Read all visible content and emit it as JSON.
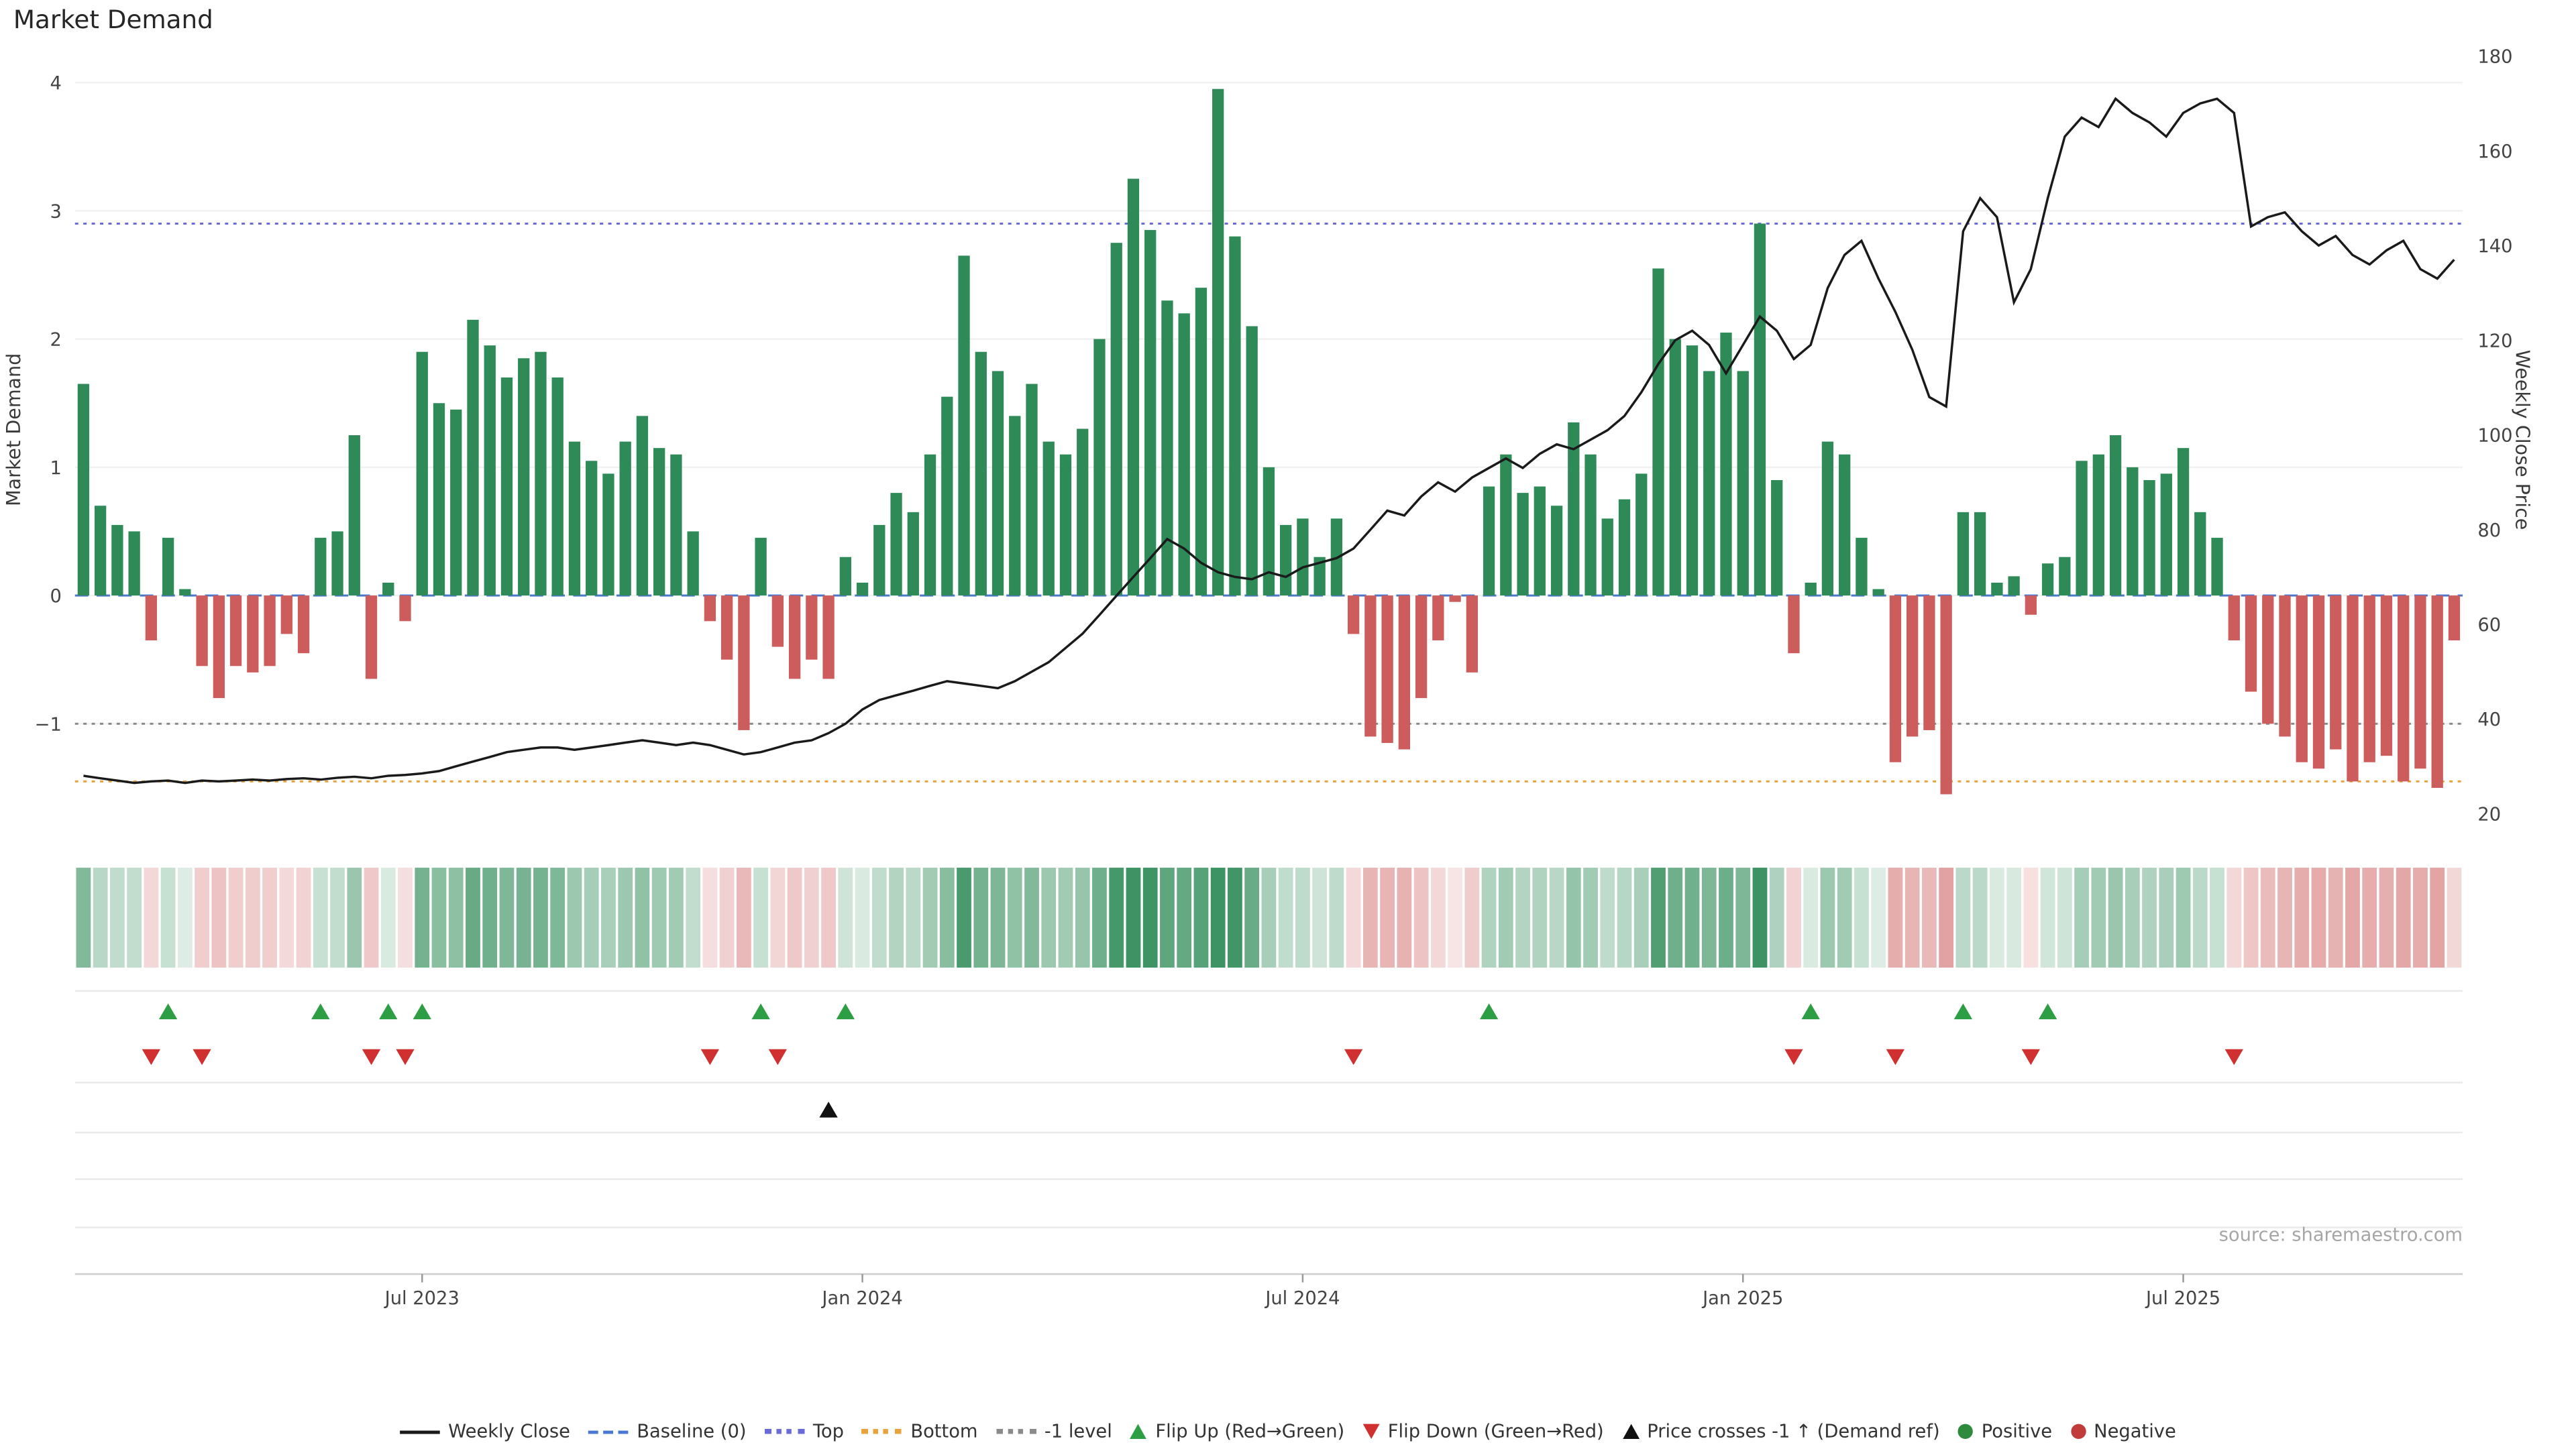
{
  "title": "Market Demand",
  "source_credit": "source: sharemaestro.com",
  "axes": {
    "left_label": "Market Demand",
    "right_label": "Weekly Close Price",
    "left_ticks": [
      {
        "label": "4",
        "value": 4
      },
      {
        "label": "3",
        "value": 3
      },
      {
        "label": "2",
        "value": 2
      },
      {
        "label": "1",
        "value": 1
      },
      {
        "label": "0",
        "value": 0
      },
      {
        "label": "−1",
        "value": -1
      }
    ],
    "right_ticks": [
      {
        "label": "180",
        "value": 180
      },
      {
        "label": "160",
        "value": 160
      },
      {
        "label": "140",
        "value": 140
      },
      {
        "label": "120",
        "value": 120
      },
      {
        "label": "100",
        "value": 100
      },
      {
        "label": "80",
        "value": 80
      },
      {
        "label": "60",
        "value": 60
      },
      {
        "label": "40",
        "value": 40
      },
      {
        "label": "20",
        "value": 20
      }
    ],
    "x_ticks": [
      {
        "label": "Jul 2023",
        "week": 20
      },
      {
        "label": "Jan 2024",
        "week": 46
      },
      {
        "label": "Jul 2024",
        "week": 72
      },
      {
        "label": "Jan 2025",
        "week": 98
      },
      {
        "label": "Jul 2025",
        "week": 124
      }
    ]
  },
  "colors": {
    "bar_positive": "#2e8b57",
    "bar_negative": "#cd5c5c",
    "price_line": "#1a1a1a",
    "baseline": "#4878cf",
    "top_line": "#6a6ad8",
    "bottom_line": "#e8a33d",
    "minus1_line": "#8a8a8a",
    "flip_up": "#2e9e44",
    "flip_down": "#d03030",
    "price_cross": "#111111"
  },
  "legend": [
    {
      "symbol": "line-solid",
      "color": "#1a1a1a",
      "label": "Weekly Close"
    },
    {
      "symbol": "line-dashed",
      "color": "#4878cf",
      "label": "Baseline (0)"
    },
    {
      "symbol": "line-dotted",
      "color": "#6a6ad8",
      "label": "Top"
    },
    {
      "symbol": "line-dotted",
      "color": "#e8a33d",
      "label": "Bottom"
    },
    {
      "symbol": "line-dotted",
      "color": "#8a8a8a",
      "label": "-1 level"
    },
    {
      "symbol": "triangle-up",
      "color": "#2e9e44",
      "label": "Flip Up (Red→Green)"
    },
    {
      "symbol": "triangle-down",
      "color": "#d03030",
      "label": "Flip Down (Green→Red)"
    },
    {
      "symbol": "triangle-up",
      "color": "#111111",
      "label": "Price crosses -1 ↑ (Demand ref)"
    },
    {
      "symbol": "dot",
      "color": "#2e8b3d",
      "label": "Positive"
    },
    {
      "symbol": "dot",
      "color": "#c23b3b",
      "label": "Negative"
    }
  ],
  "chart_data": {
    "type": "bar",
    "title": "Market Demand",
    "n_weeks": 141,
    "x_unit": "week",
    "x_range_note": "weekly values, x ticks at Jul 2023 / Jan 2024 / Jul 2024 / Jan 2025 / Jul 2025",
    "left_ylim": [
      -1.72,
      4.28
    ],
    "right_ylim": [
      19.5,
      182
    ],
    "grid": true,
    "legend_position": "bottom-center",
    "series": [
      {
        "name": "Market Demand",
        "type": "bar",
        "axis": "left",
        "values": [
          1.65,
          0.7,
          0.55,
          0.5,
          -0.35,
          0.45,
          0.05,
          -0.55,
          -0.8,
          -0.55,
          -0.6,
          -0.55,
          -0.3,
          -0.45,
          0.45,
          0.5,
          1.25,
          -0.65,
          0.1,
          -0.2,
          1.9,
          1.5,
          1.45,
          2.15,
          1.95,
          1.7,
          1.85,
          1.9,
          1.7,
          1.2,
          1.05,
          0.95,
          1.2,
          1.4,
          1.15,
          1.1,
          0.5,
          -0.2,
          -0.5,
          -1.05,
          0.45,
          -0.4,
          -0.65,
          -0.5,
          -0.65,
          0.3,
          0.1,
          0.55,
          0.8,
          0.65,
          1.1,
          1.55,
          2.65,
          1.9,
          1.75,
          1.4,
          1.65,
          1.2,
          1.1,
          1.3,
          2.0,
          2.75,
          3.25,
          2.85,
          2.3,
          2.2,
          2.4,
          3.95,
          2.8,
          2.1,
          1.0,
          0.55,
          0.6,
          0.3,
          0.6,
          -0.3,
          -1.1,
          -1.15,
          -1.2,
          -0.8,
          -0.35,
          -0.05,
          -0.6,
          0.85,
          1.1,
          0.8,
          0.85,
          0.7,
          1.35,
          1.1,
          0.6,
          0.75,
          0.95,
          2.55,
          2.0,
          1.95,
          1.75,
          2.05,
          1.75,
          2.9,
          0.9,
          -0.45,
          0.1,
          1.2,
          1.1,
          0.45,
          0.05,
          -1.3,
          -1.1,
          -1.05,
          -1.55,
          0.65,
          0.65,
          0.1,
          0.15,
          -0.15,
          0.25,
          0.3,
          1.05,
          1.1,
          1.25,
          1.0,
          0.9,
          0.95,
          1.15,
          0.65,
          0.45,
          -0.35,
          -0.75,
          -1.0,
          -1.1,
          -1.3,
          -1.35,
          -1.2,
          -1.45,
          -1.3,
          -1.25,
          -1.45,
          -1.35,
          -1.5,
          -0.35
        ]
      },
      {
        "name": "Weekly Close",
        "type": "line",
        "axis": "right",
        "values": [
          28,
          27.5,
          27,
          26.5,
          26.8,
          27,
          26.5,
          27,
          26.8,
          27,
          27.2,
          27,
          27.3,
          27.5,
          27.2,
          27.6,
          27.8,
          27.5,
          28,
          28.2,
          28.5,
          29,
          30,
          31,
          32,
          33,
          33.5,
          34,
          34,
          33.5,
          34,
          34.5,
          35,
          35.5,
          35,
          34.5,
          35,
          34.5,
          33.5,
          32.5,
          33,
          34,
          35,
          35.5,
          37,
          39,
          42,
          44,
          45,
          46,
          47,
          48,
          47.5,
          47,
          46.5,
          48,
          50,
          52,
          55,
          58,
          62,
          66,
          70,
          74,
          78,
          76,
          73,
          71,
          70,
          69.5,
          71,
          70,
          72,
          73,
          74,
          76,
          80,
          84,
          83,
          87,
          90,
          88,
          91,
          93,
          95,
          93,
          96,
          98,
          97,
          99,
          101,
          104,
          109,
          115,
          120,
          122,
          119,
          113,
          119,
          125,
          122,
          116,
          119,
          131,
          138,
          141,
          133,
          126,
          118,
          108,
          106,
          143,
          150,
          146,
          128,
          135,
          150,
          163,
          167,
          165,
          171,
          168,
          166,
          163,
          168,
          170,
          171,
          168,
          144,
          146,
          147,
          143,
          140,
          142,
          138,
          136,
          139,
          141,
          135,
          133,
          137
        ]
      }
    ],
    "reference_lines": [
      {
        "key": "baseline",
        "name": "Baseline (0)",
        "axis": "left",
        "value": 0,
        "style": "dashed",
        "color": "#4878cf"
      },
      {
        "key": "top",
        "name": "Top",
        "axis": "left",
        "value": 2.9,
        "style": "dotted",
        "color": "#6a6ad8"
      },
      {
        "key": "bottom",
        "name": "Bottom",
        "axis": "left",
        "value": -1.45,
        "style": "dotted",
        "color": "#e8a33d"
      },
      {
        "key": "minus1",
        "name": "-1 level",
        "axis": "left",
        "value": -1,
        "style": "dotted",
        "color": "#8a8a8a"
      }
    ],
    "markers": {
      "flip_up_weeks": [
        5,
        14,
        18,
        20,
        40,
        45,
        83,
        102,
        111,
        116
      ],
      "flip_down_weeks": [
        4,
        7,
        17,
        19,
        37,
        41,
        75,
        101,
        107,
        115,
        127
      ],
      "price_crosses_minus1_weeks": [
        44
      ]
    },
    "heatmap": {
      "type": "heatmap",
      "note": "single-row weekly strip below main panel, shaded by Market Demand value: green for positive, red for negative, opacity proportional to magnitude"
    }
  }
}
